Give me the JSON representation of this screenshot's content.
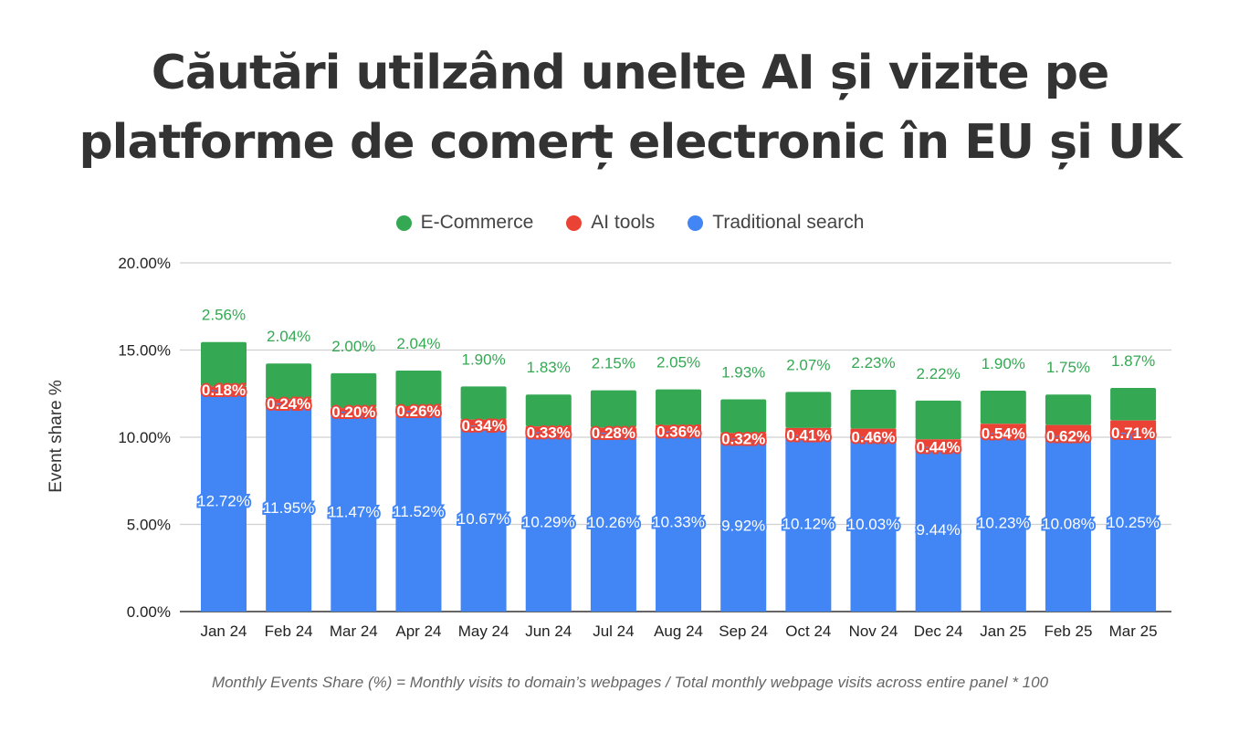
{
  "title_lines": [
    "Căutări utilzând unelte AI și vizite pe",
    "platforme de comerț electronic în EU și UK"
  ],
  "footnote": "Monthly Events Share (%) = Monthly visits to domain’s webpages / Total monthly webpage visits across entire panel * 100",
  "colors": {
    "ecommerce": "#34a853",
    "ai": "#ea4335",
    "search": "#4285f4",
    "grid": "#d0d0d0"
  },
  "chart_data": {
    "type": "bar",
    "stacked": true,
    "ylabel": "Event share %",
    "ylim": [
      0,
      20
    ],
    "yticks": [
      "0.00%",
      "5.00%",
      "10.00%",
      "15.00%",
      "20.00%"
    ],
    "grid": true,
    "legend_placement": "top",
    "categories": [
      "Jan 24",
      "Feb 24",
      "Mar 24",
      "Apr 24",
      "May 24",
      "Jun 24",
      "Jul 24",
      "Aug 24",
      "Sep 24",
      "Oct 24",
      "Nov 24",
      "Dec 24",
      "Jan 25",
      "Feb 25",
      "Mar 25"
    ],
    "series": [
      {
        "name": "Traditional search",
        "values": [
          12.72,
          11.95,
          11.47,
          11.52,
          10.67,
          10.29,
          10.26,
          10.33,
          9.92,
          10.12,
          10.03,
          9.44,
          10.23,
          10.08,
          10.25
        ]
      },
      {
        "name": "AI tools",
        "values": [
          0.18,
          0.24,
          0.2,
          0.26,
          0.34,
          0.33,
          0.28,
          0.36,
          0.32,
          0.41,
          0.46,
          0.44,
          0.54,
          0.62,
          0.71
        ]
      },
      {
        "name": "E-Commerce",
        "values": [
          2.56,
          2.04,
          2.0,
          2.04,
          1.9,
          1.83,
          2.15,
          2.05,
          1.93,
          2.07,
          2.23,
          2.22,
          1.9,
          1.75,
          1.87
        ]
      }
    ],
    "legend": [
      "E-Commerce",
      "AI tools",
      "Traditional search"
    ]
  }
}
